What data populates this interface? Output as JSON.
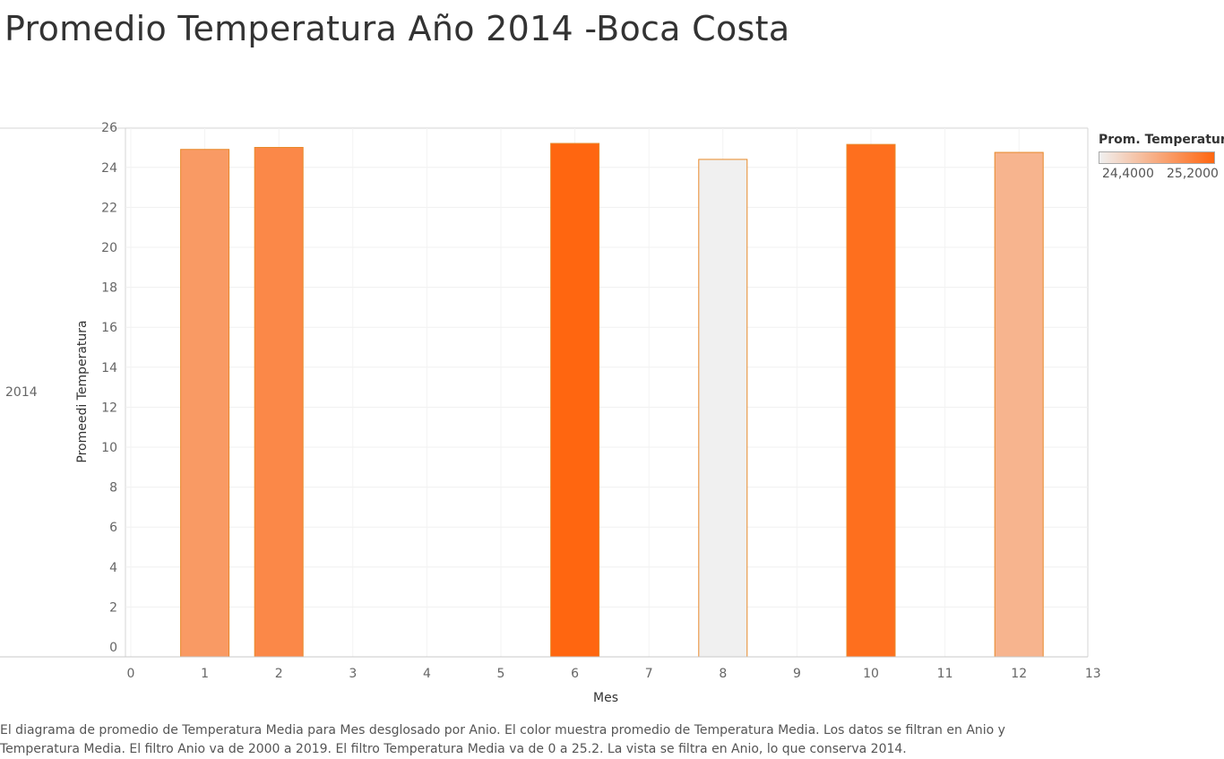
{
  "title": "Promedio Temperatura Año 2014 -Boca Costa",
  "row_label": "2014",
  "legend": {
    "title": "Prom. Temperatur..",
    "min_label": "24,4000",
    "max_label": "25,2000",
    "color_low": "#f0f0f0",
    "color_high": "#ff6610"
  },
  "caption": "El diagrama de promedio de Temperatura Media para Mes desglosado por Anio.  El color muestra promedio de Temperatura Media. Los datos se filtran en Anio y Temperatura Media. El filtro Anio va de 2000 a 2019. El filtro Temperatura Media va de 0 a 25.2. La vista se filtra en Anio, lo que conserva 2014.",
  "chart_data": {
    "type": "bar",
    "x": [
      1,
      2,
      6,
      8,
      10,
      12
    ],
    "values": [
      24.9,
      25.0,
      25.2,
      24.4,
      25.15,
      24.75
    ],
    "xlabel": "Mes",
    "ylabel": "Promeedi Temperatura",
    "xlim": [
      0,
      13
    ],
    "ylim": [
      0,
      26
    ],
    "x_ticks": [
      0,
      1,
      2,
      3,
      4,
      5,
      6,
      7,
      8,
      9,
      10,
      11,
      12,
      13
    ],
    "y_ticks": [
      0,
      2,
      4,
      6,
      8,
      10,
      12,
      14,
      16,
      18,
      20,
      22,
      24,
      26
    ],
    "grid": true,
    "bar_outline_color": "#e8892a",
    "legend_position": "right"
  }
}
